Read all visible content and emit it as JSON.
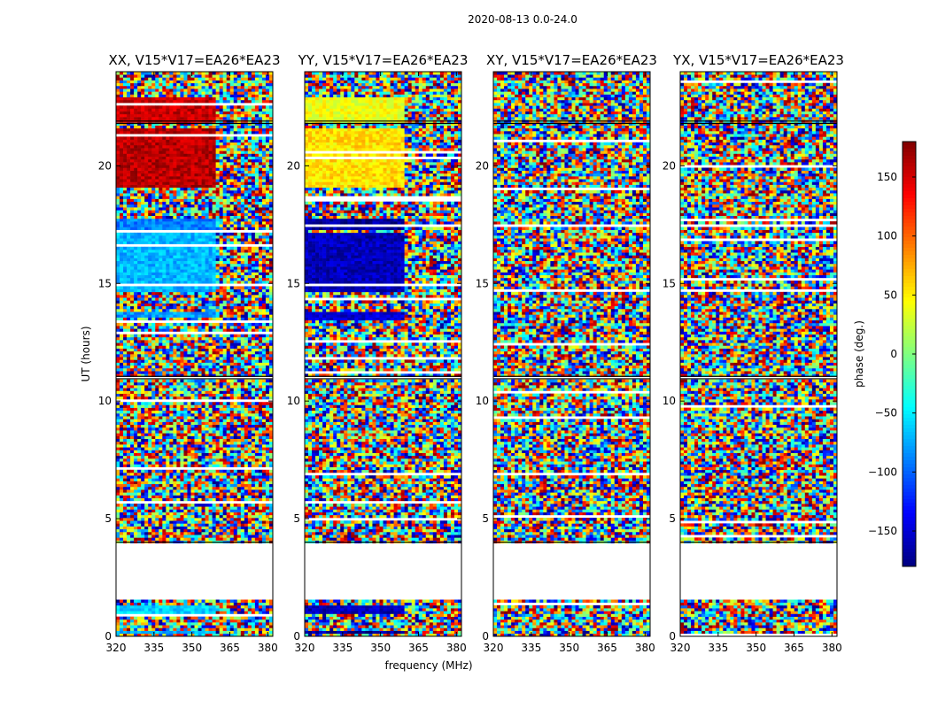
{
  "figure": {
    "suptitle": "2020-08-13 0.0-24.0"
  },
  "chart_data": {
    "type": "heatmap",
    "xlabel": "frequency (MHz)",
    "ylabel": "UT (hours)",
    "xlim": [
      320,
      382
    ],
    "ylim": [
      0,
      24
    ],
    "xticks": [
      320,
      335,
      350,
      365,
      380
    ],
    "yticks": [
      0,
      5,
      10,
      15,
      20
    ],
    "colorbar": {
      "label": "phase (deg.)",
      "range": [
        -180,
        180
      ],
      "ticks": [
        -150,
        -100,
        -50,
        0,
        50,
        100,
        150
      ],
      "colormap": "jet",
      "tick_labels": [
        "−150",
        "−100",
        "−50",
        "0",
        "50",
        "100",
        "150"
      ]
    },
    "panels": [
      {
        "title": "XX, V15*V17=EA26*EA23",
        "id": "xx",
        "phase_blocks": [
          {
            "t0": 19.1,
            "t1": 21.6,
            "f0": 320,
            "f1": 360,
            "phase": 160
          },
          {
            "t0": 21.9,
            "t1": 22.9,
            "f0": 320,
            "f1": 360,
            "phase": 155
          },
          {
            "t0": 14.7,
            "t1": 17.2,
            "f0": 320,
            "f1": 360,
            "phase": -70
          },
          {
            "t0": 17.3,
            "t1": 17.8,
            "f0": 320,
            "f1": 360,
            "phase": -90
          },
          {
            "t0": 13.6,
            "t1": 13.8,
            "f0": 320,
            "f1": 360,
            "phase": -80
          },
          {
            "t0": 0.9,
            "t1": 1.3,
            "f0": 320,
            "f1": 360,
            "phase": -60
          },
          {
            "t0": 0.1,
            "t1": 0.3,
            "f0": 320,
            "f1": 360,
            "phase": -70
          }
        ]
      },
      {
        "title": "YY, V15*V17=EA26*EA23",
        "id": "yy",
        "phase_blocks": [
          {
            "t0": 19.1,
            "t1": 21.6,
            "f0": 320,
            "f1": 360,
            "phase": 55
          },
          {
            "t0": 21.9,
            "t1": 22.9,
            "f0": 320,
            "f1": 360,
            "phase": 40
          },
          {
            "t0": 14.7,
            "t1": 17.2,
            "f0": 320,
            "f1": 360,
            "phase": -160
          },
          {
            "t0": 17.3,
            "t1": 17.8,
            "f0": 320,
            "f1": 360,
            "phase": -170
          },
          {
            "t0": 13.4,
            "t1": 13.8,
            "f0": 320,
            "f1": 360,
            "phase": -150
          },
          {
            "t0": 0.9,
            "t1": 1.3,
            "f0": 320,
            "f1": 360,
            "phase": -160
          },
          {
            "t0": 0.1,
            "t1": 0.3,
            "f0": 320,
            "f1": 360,
            "phase": -170
          }
        ]
      },
      {
        "title": "XY, V15*V17=EA26*EA23",
        "id": "xy",
        "phase_blocks": []
      },
      {
        "title": "YX, V15*V17=EA26*EA23",
        "id": "yx",
        "phase_blocks": []
      }
    ],
    "data_intervals_hours": [
      [
        0.0,
        1.6
      ],
      [
        4.0,
        10.95
      ],
      [
        11.05,
        21.8
      ],
      [
        21.9,
        24.0
      ]
    ],
    "note": "Cells outside the listed blocks show random phase (decorrelated noise)."
  }
}
